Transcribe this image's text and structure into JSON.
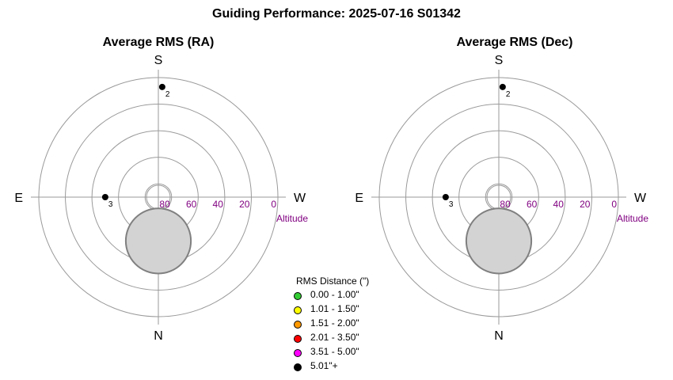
{
  "title": "Guiding Performance: 2025-07-16 S01342",
  "panels": [
    {
      "title": "Average RMS (RA)"
    },
    {
      "title": "Average RMS (Dec)"
    }
  ],
  "compass": {
    "north": "N",
    "south": "S",
    "east": "E",
    "west": "W"
  },
  "altitude_label": "Altitude",
  "legend": {
    "title": "RMS Distance (\")",
    "items": [
      {
        "label": "0.00 - 1.00\"",
        "color": "#33cc33"
      },
      {
        "label": "1.01 - 1.50\"",
        "color": "#ffff00"
      },
      {
        "label": "1.51 - 2.00\"",
        "color": "#ff9900"
      },
      {
        "label": "2.01 - 3.50\"",
        "color": "#ff0000"
      },
      {
        "label": "3.51 - 5.00\"",
        "color": "#ff00ff"
      },
      {
        "label": "5.01\"+",
        "color": "#000000"
      }
    ]
  },
  "chart_data": [
    {
      "type": "scatter",
      "projection": "polar (alt-az)",
      "title": "Average RMS (RA)",
      "radial_axis": {
        "label": "Altitude",
        "ticks": [
          80,
          60,
          40,
          20,
          0
        ],
        "range": [
          90,
          0
        ]
      },
      "moon": {
        "azimuth_deg": 0,
        "altitude_deg": 57,
        "angular_radius_deg": 24.5,
        "color": "#d3d3d3"
      },
      "points": [
        {
          "label": "2",
          "azimuth_deg": 182,
          "altitude_deg": 7,
          "color": "#000000"
        },
        {
          "label": "3",
          "azimuth_deg": 90,
          "altitude_deg": 50,
          "color": "#000000"
        }
      ]
    },
    {
      "type": "scatter",
      "projection": "polar (alt-az)",
      "title": "Average RMS (Dec)",
      "radial_axis": {
        "label": "Altitude",
        "ticks": [
          80,
          60,
          40,
          20,
          0
        ],
        "range": [
          90,
          0
        ]
      },
      "moon": {
        "azimuth_deg": 0,
        "altitude_deg": 57,
        "angular_radius_deg": 24.5,
        "color": "#d3d3d3"
      },
      "points": [
        {
          "label": "2",
          "azimuth_deg": 182,
          "altitude_deg": 7,
          "color": "#000000"
        },
        {
          "label": "3",
          "azimuth_deg": 90,
          "altitude_deg": 50,
          "color": "#000000"
        }
      ]
    }
  ]
}
